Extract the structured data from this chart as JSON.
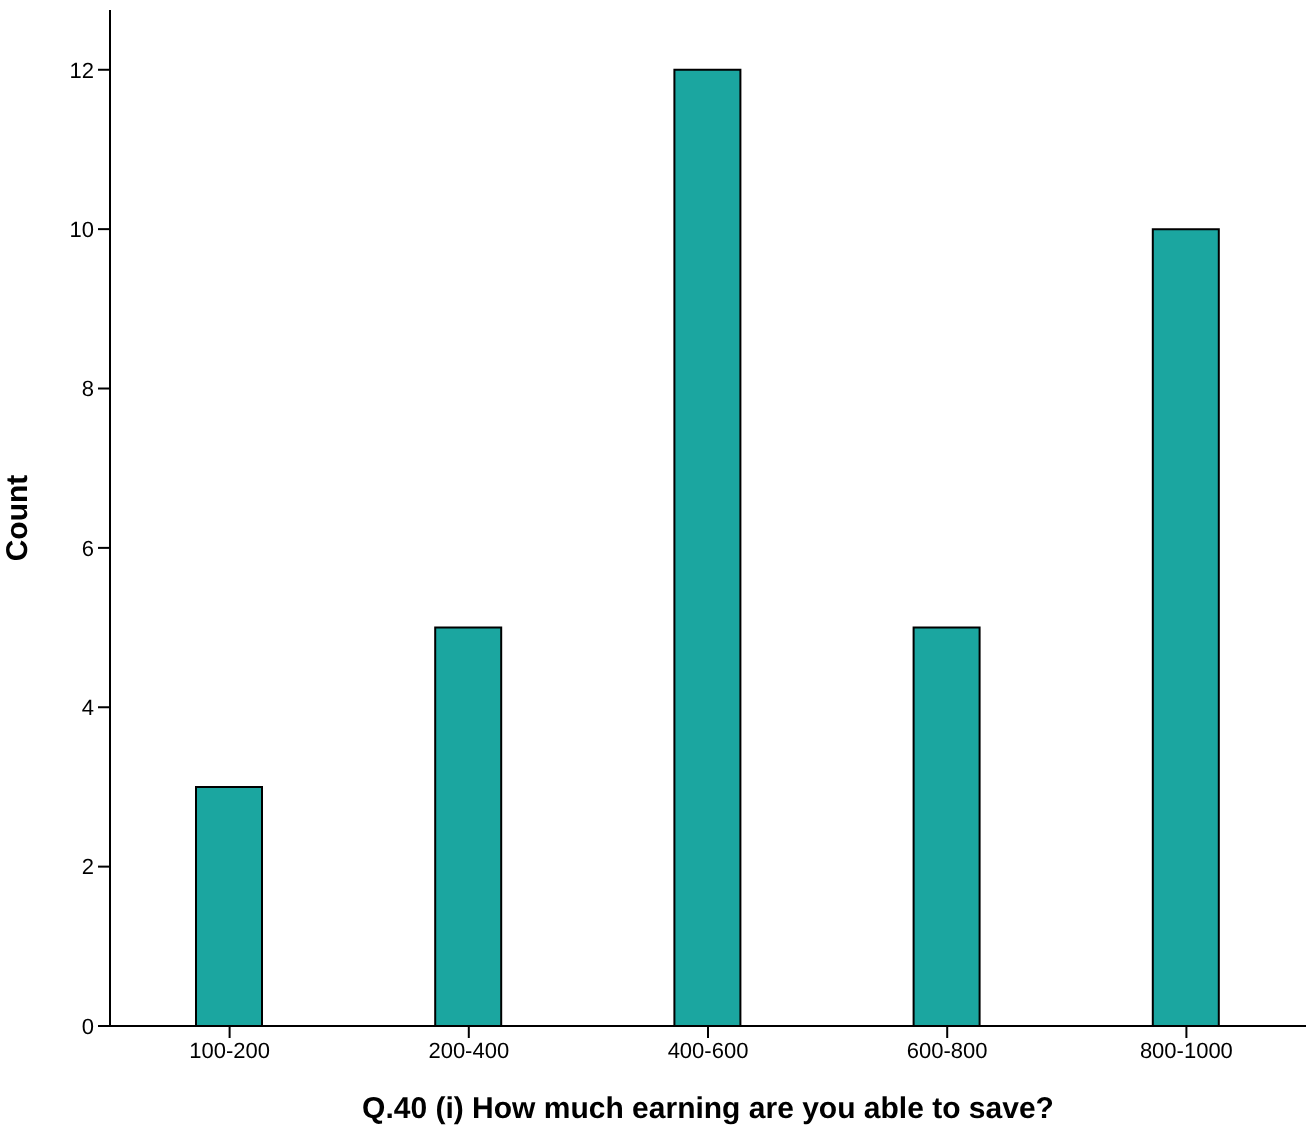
{
  "chart_data": {
    "type": "bar",
    "xlabel": "Q.40 (i) How much earning are you able to save?",
    "ylabel": "Count",
    "categories": [
      "100-200",
      "200-400",
      "400-600",
      "600-800",
      "800-1000"
    ],
    "values": [
      3,
      5,
      12,
      5,
      10
    ],
    "color": "#1ba6a0",
    "ylim": [
      0,
      12.75
    ],
    "yticks": [
      0,
      2,
      4,
      6,
      8,
      10,
      12
    ],
    "grid": false,
    "legend": false
  }
}
